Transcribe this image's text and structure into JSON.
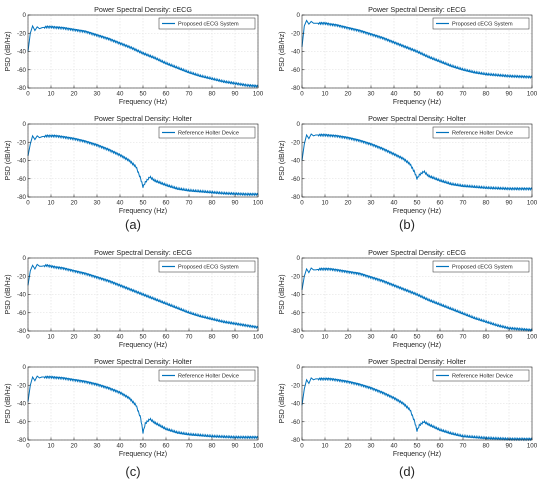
{
  "panels": [
    {
      "caption": "(a)",
      "subplots": [
        {
          "title": "Power Spectral Density: cECG",
          "legend": "Proposed cECG System",
          "chart_data": {
            "type": "line",
            "xlabel": "Frequency (Hz)",
            "ylabel": "PSD (dB/Hz)",
            "xlim": [
              0,
              100
            ],
            "ylim": [
              -80,
              0
            ],
            "xticks": [
              0,
              10,
              20,
              30,
              40,
              50,
              60,
              70,
              80,
              90,
              100
            ],
            "yticks": [
              0,
              -20,
              -40,
              -60,
              -80
            ],
            "grid": true,
            "legend_position": "top-right",
            "series": [
              {
                "name": "Proposed cECG System",
                "x": [
                  0,
                  1,
                  2,
                  3,
                  4,
                  5,
                  6,
                  8,
                  10,
                  12,
                  15,
                  20,
                  25,
                  30,
                  35,
                  40,
                  45,
                  50,
                  55,
                  60,
                  65,
                  70,
                  75,
                  80,
                  85,
                  90,
                  95,
                  100
                ],
                "y": [
                  -40,
                  -20,
                  -12,
                  -17,
                  -13,
                  -15,
                  -14,
                  -13,
                  -13,
                  -13.5,
                  -14,
                  -16,
                  -18,
                  -22,
                  -26,
                  -31,
                  -36,
                  -42,
                  -47,
                  -53,
                  -58,
                  -63,
                  -67,
                  -70,
                  -73,
                  -75,
                  -77,
                  -78
                ]
              }
            ]
          }
        },
        {
          "title": "Power Spectral Density: Holter",
          "legend": "Reference Holter Device",
          "chart_data": {
            "type": "line",
            "xlabel": "Frequency (Hz)",
            "ylabel": "PSD (dB/Hz)",
            "xlim": [
              0,
              100
            ],
            "ylim": [
              -80,
              0
            ],
            "xticks": [
              0,
              10,
              20,
              30,
              40,
              50,
              60,
              70,
              80,
              90,
              100
            ],
            "yticks": [
              0,
              -20,
              -40,
              -60,
              -80
            ],
            "grid": true,
            "legend_position": "top-right",
            "series": [
              {
                "name": "Reference Holter Device",
                "x": [
                  0,
                  1,
                  2,
                  3,
                  4,
                  5,
                  6,
                  8,
                  10,
                  12,
                  15,
                  20,
                  25,
                  30,
                  35,
                  40,
                  44,
                  47,
                  49,
                  50,
                  51,
                  53,
                  55,
                  60,
                  65,
                  70,
                  75,
                  80,
                  85,
                  90,
                  95,
                  100
                ],
                "y": [
                  -35,
                  -22,
                  -13,
                  -17,
                  -13,
                  -15,
                  -14,
                  -13,
                  -13,
                  -13,
                  -14,
                  -16,
                  -19,
                  -23,
                  -28,
                  -34,
                  -40,
                  -47,
                  -60,
                  -69,
                  -64,
                  -58,
                  -62,
                  -67,
                  -71,
                  -73,
                  -74,
                  -75,
                  -76,
                  -76.5,
                  -77,
                  -77
                ]
              }
            ]
          }
        }
      ]
    },
    {
      "caption": "(b)",
      "subplots": [
        {
          "title": "Power Spectral Density: cECG",
          "legend": "Proposed cECG System",
          "chart_data": {
            "type": "line",
            "xlabel": "Frequency (Hz)",
            "ylabel": "PSD (dB/Hz)",
            "xlim": [
              0,
              100
            ],
            "ylim": [
              -80,
              0
            ],
            "xticks": [
              0,
              10,
              20,
              30,
              40,
              50,
              60,
              70,
              80,
              90,
              100
            ],
            "yticks": [
              0,
              -20,
              -40,
              -60,
              -80
            ],
            "grid": true,
            "legend_position": "top-right",
            "series": [
              {
                "name": "Proposed cECG System",
                "x": [
                  0,
                  1,
                  2,
                  3,
                  4,
                  5,
                  6,
                  8,
                  10,
                  12,
                  15,
                  20,
                  25,
                  30,
                  35,
                  40,
                  45,
                  50,
                  55,
                  60,
                  65,
                  70,
                  75,
                  80,
                  85,
                  90,
                  95,
                  100
                ],
                "y": [
                  -35,
                  -12,
                  -6,
                  -10,
                  -7,
                  -9,
                  -9,
                  -9,
                  -9,
                  -10,
                  -11,
                  -14,
                  -17,
                  -21,
                  -25,
                  -30,
                  -35,
                  -40,
                  -46,
                  -51,
                  -56,
                  -60,
                  -63,
                  -65,
                  -66,
                  -67,
                  -67.5,
                  -68
                ]
              }
            ]
          }
        },
        {
          "title": "Power Spectral Density: Holter",
          "legend": "Reference Holter Device",
          "chart_data": {
            "type": "line",
            "xlabel": "Frequency (Hz)",
            "ylabel": "PSD (dB/Hz)",
            "xlim": [
              0,
              100
            ],
            "ylim": [
              -80,
              0
            ],
            "xticks": [
              0,
              10,
              20,
              30,
              40,
              50,
              60,
              70,
              80,
              90,
              100
            ],
            "yticks": [
              0,
              -20,
              -40,
              -60,
              -80
            ],
            "grid": true,
            "legend_position": "top-right",
            "series": [
              {
                "name": "Reference Holter Device",
                "x": [
                  0,
                  1,
                  2,
                  3,
                  4,
                  5,
                  6,
                  8,
                  10,
                  12,
                  15,
                  20,
                  25,
                  30,
                  35,
                  40,
                  44,
                  47,
                  49,
                  50,
                  51,
                  53,
                  55,
                  60,
                  65,
                  70,
                  75,
                  80,
                  85,
                  90,
                  95,
                  100
                ],
                "y": [
                  -40,
                  -22,
                  -12,
                  -16,
                  -11,
                  -13,
                  -12,
                  -12,
                  -12,
                  -12.5,
                  -13,
                  -15,
                  -18,
                  -22,
                  -27,
                  -33,
                  -38,
                  -44,
                  -53,
                  -60,
                  -56,
                  -52,
                  -57,
                  -62,
                  -66,
                  -68,
                  -69,
                  -70,
                  -70.5,
                  -71,
                  -71,
                  -71
                ]
              }
            ]
          }
        }
      ]
    },
    {
      "caption": "(c)",
      "subplots": [
        {
          "title": "Power Spectral Density: cECG",
          "legend": "Proposed cECG System",
          "chart_data": {
            "type": "line",
            "xlabel": "Frequency (Hz)",
            "ylabel": "PSD (dB/Hz)",
            "xlim": [
              0,
              100
            ],
            "ylim": [
              -80,
              0
            ],
            "xticks": [
              0,
              10,
              20,
              30,
              40,
              50,
              60,
              70,
              80,
              90,
              100
            ],
            "yticks": [
              0,
              -20,
              -40,
              -60,
              -80
            ],
            "grid": true,
            "legend_position": "top-right",
            "series": [
              {
                "name": "Proposed cECG System",
                "x": [
                  0,
                  1,
                  2,
                  3,
                  4,
                  5,
                  6,
                  8,
                  10,
                  12,
                  15,
                  20,
                  25,
                  30,
                  35,
                  40,
                  45,
                  50,
                  55,
                  60,
                  65,
                  70,
                  75,
                  80,
                  85,
                  90,
                  95,
                  100
                ],
                "y": [
                  -30,
                  -14,
                  -8,
                  -12,
                  -7,
                  -9,
                  -9,
                  -8,
                  -9,
                  -10,
                  -11,
                  -14,
                  -17,
                  -21,
                  -25,
                  -30,
                  -35,
                  -40,
                  -45,
                  -50,
                  -55,
                  -60,
                  -64,
                  -67,
                  -70,
                  -72,
                  -74,
                  -76
                ]
              }
            ]
          }
        },
        {
          "title": "Power Spectral Density: Holter",
          "legend": "Reference Holter Device",
          "chart_data": {
            "type": "line",
            "xlabel": "Frequency (Hz)",
            "ylabel": "PSD (dB/Hz)",
            "xlim": [
              0,
              100
            ],
            "ylim": [
              -80,
              0
            ],
            "xticks": [
              0,
              10,
              20,
              30,
              40,
              50,
              60,
              70,
              80,
              90,
              100
            ],
            "yticks": [
              0,
              -20,
              -40,
              -60,
              -80
            ],
            "grid": true,
            "legend_position": "top-right",
            "series": [
              {
                "name": "Reference Holter Device",
                "x": [
                  0,
                  1,
                  2,
                  3,
                  4,
                  5,
                  6,
                  8,
                  10,
                  12,
                  15,
                  20,
                  25,
                  30,
                  35,
                  40,
                  44,
                  47,
                  49,
                  50,
                  51,
                  53,
                  55,
                  60,
                  65,
                  70,
                  75,
                  80,
                  85,
                  90,
                  95,
                  100
                ],
                "y": [
                  -38,
                  -20,
                  -11,
                  -15,
                  -10,
                  -12,
                  -11,
                  -11,
                  -11,
                  -11.5,
                  -12,
                  -14,
                  -16,
                  -19,
                  -23,
                  -28,
                  -34,
                  -42,
                  -56,
                  -72,
                  -62,
                  -57,
                  -61,
                  -68,
                  -72,
                  -74,
                  -75,
                  -76,
                  -76.5,
                  -77,
                  -77,
                  -77
                ]
              }
            ]
          }
        }
      ]
    },
    {
      "caption": "(d)",
      "subplots": [
        {
          "title": "Power Spectral Density: cECG",
          "legend": "Proposed cECG System",
          "chart_data": {
            "type": "line",
            "xlabel": "Frequency (Hz)",
            "ylabel": "PSD (dB/Hz)",
            "xlim": [
              0,
              100
            ],
            "ylim": [
              -80,
              0
            ],
            "xticks": [
              0,
              10,
              20,
              30,
              40,
              50,
              60,
              70,
              80,
              90,
              100
            ],
            "yticks": [
              0,
              -20,
              -40,
              -60,
              -80
            ],
            "grid": true,
            "legend_position": "top-right",
            "series": [
              {
                "name": "Proposed cECG System",
                "x": [
                  0,
                  1,
                  2,
                  3,
                  4,
                  5,
                  6,
                  8,
                  10,
                  12,
                  15,
                  20,
                  25,
                  30,
                  35,
                  40,
                  45,
                  50,
                  55,
                  60,
                  65,
                  70,
                  75,
                  80,
                  85,
                  90,
                  95,
                  100
                ],
                "y": [
                  -35,
                  -20,
                  -12,
                  -16,
                  -11,
                  -13,
                  -13,
                  -12,
                  -12,
                  -12,
                  -13,
                  -15,
                  -17,
                  -21,
                  -25,
                  -30,
                  -35,
                  -40,
                  -46,
                  -51,
                  -56,
                  -61,
                  -66,
                  -70,
                  -74,
                  -77,
                  -78,
                  -79
                ]
              }
            ]
          }
        },
        {
          "title": "Power Spectral Density: Holter",
          "legend": "Reference Holter Device",
          "chart_data": {
            "type": "line",
            "xlabel": "Frequency (Hz)",
            "ylabel": "PSD (dB/Hz)",
            "xlim": [
              0,
              100
            ],
            "ylim": [
              -80,
              0
            ],
            "xticks": [
              0,
              10,
              20,
              30,
              40,
              50,
              60,
              70,
              80,
              90,
              100
            ],
            "yticks": [
              0,
              -20,
              -40,
              -60,
              -80
            ],
            "grid": true,
            "legend_position": "top-right",
            "series": [
              {
                "name": "Reference Holter Device",
                "x": [
                  0,
                  1,
                  2,
                  3,
                  4,
                  5,
                  6,
                  8,
                  10,
                  12,
                  15,
                  20,
                  25,
                  30,
                  35,
                  40,
                  44,
                  47,
                  49,
                  50,
                  51,
                  53,
                  55,
                  60,
                  65,
                  70,
                  75,
                  80,
                  85,
                  90,
                  95,
                  100
                ],
                "y": [
                  -42,
                  -24,
                  -14,
                  -18,
                  -12,
                  -14,
                  -13,
                  -13,
                  -13,
                  -13,
                  -14,
                  -16,
                  -19,
                  -23,
                  -28,
                  -34,
                  -40,
                  -47,
                  -60,
                  -70,
                  -64,
                  -60,
                  -63,
                  -69,
                  -73,
                  -76,
                  -77,
                  -78,
                  -78.5,
                  -79,
                  -79,
                  -79
                ]
              }
            ]
          }
        }
      ]
    }
  ],
  "colors": {
    "series": "#0072bd",
    "grid": "#dedede",
    "axis": "#262626",
    "text": "#262626"
  }
}
